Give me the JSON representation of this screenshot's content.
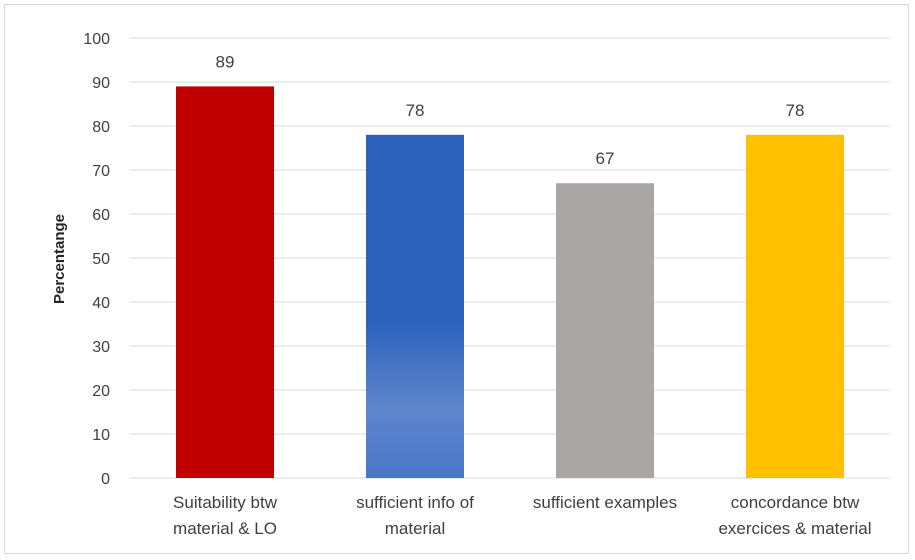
{
  "chart_data": {
    "type": "bar",
    "categories": [
      [
        "Suitability btw",
        "material & LO"
      ],
      [
        "sufficient info of",
        "material"
      ],
      [
        "sufficient examples"
      ],
      [
        "concordance btw",
        "exercices & material"
      ]
    ],
    "values": [
      89,
      78,
      67,
      78
    ],
    "data_labels": [
      "89",
      "78",
      "67",
      "78"
    ],
    "ylabel": "Percentange",
    "xlabel": "",
    "ylim": [
      0,
      100
    ],
    "yticks": [
      "0",
      "10",
      "20",
      "30",
      "40",
      "50",
      "60",
      "70",
      "80",
      "90",
      "100"
    ],
    "grid": true,
    "legend": "none",
    "colors": [
      "#c00000",
      "#2e62bc",
      "#aaa6a5",
      "#ffc000"
    ]
  }
}
